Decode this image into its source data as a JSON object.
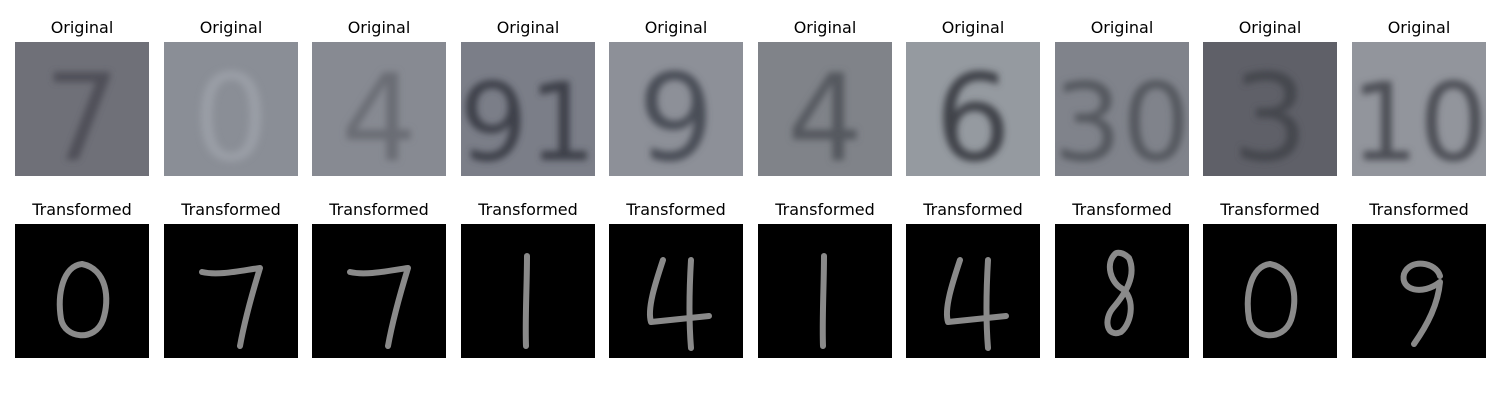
{
  "figure": {
    "top_row_title": "Original",
    "bottom_row_title": "Transformed"
  },
  "panels": [
    {
      "original_glyph": "7",
      "original_shade": "#6f7078",
      "original_digit_shade": "#4f5058",
      "transformed_digit": "0"
    },
    {
      "original_glyph": "0",
      "original_shade": "#8a8e96",
      "original_digit_shade": "#9a9ea6",
      "transformed_digit": "7"
    },
    {
      "original_glyph": "4",
      "original_shade": "#878a92",
      "original_digit_shade": "#6a6d74",
      "transformed_digit": "7"
    },
    {
      "original_glyph": "91",
      "original_shade": "#7b7e88",
      "original_digit_shade": "#3e4048",
      "transformed_digit": "1"
    },
    {
      "original_glyph": "9",
      "original_shade": "#8d9098",
      "original_digit_shade": "#4a4d56",
      "transformed_digit": "4"
    },
    {
      "original_glyph": "4",
      "original_shade": "#808389",
      "original_digit_shade": "#55585f",
      "transformed_digit": "1"
    },
    {
      "original_glyph": "6",
      "original_shade": "#959aa0",
      "original_digit_shade": "#3f4248",
      "transformed_digit": "4"
    },
    {
      "original_glyph": "30",
      "original_shade": "#80838b",
      "original_digit_shade": "#55585f",
      "transformed_digit": "8"
    },
    {
      "original_glyph": "3",
      "original_shade": "#5f6068",
      "original_digit_shade": "#45464d",
      "transformed_digit": "0"
    },
    {
      "original_glyph": "10",
      "original_shade": "#92959c",
      "original_digit_shade": "#4e5057",
      "transformed_digit": "9"
    }
  ]
}
